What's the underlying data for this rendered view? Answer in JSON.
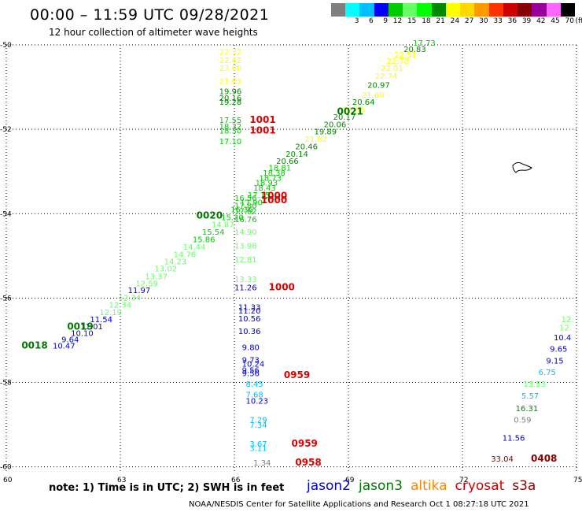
{
  "title": "00:00 – 11:59 UTC 09/28/2021",
  "subtitle": "12 hour collection of altimeter wave heights",
  "note": "note: 1) Time is in UTC; 2) SWH is in feet",
  "credit": "NOAA/NESDIS Center for Satellite Applications and Research    Oct  1 08:27:18 UTC 2021",
  "scale": {
    "unit": "(ft)",
    "labels": [
      "",
      "3",
      "6",
      "9",
      "12",
      "15",
      "18",
      "21",
      "24",
      "27",
      "30",
      "33",
      "36",
      "39",
      "42",
      "45",
      "70"
    ],
    "colors": [
      "#7f7f7f",
      "#00ffff",
      "#00bfff",
      "#0000ff",
      "#00cc00",
      "#66ff66",
      "#00ff00",
      "#008800",
      "#ffff00",
      "#ffd700",
      "#ff9900",
      "#ff3300",
      "#cc0000",
      "#880000",
      "#990099",
      "#ff66ff",
      "#000000"
    ]
  },
  "satellites": [
    {
      "name": "jason2",
      "color": "#0000cc"
    },
    {
      "name": "jason3",
      "color": "#007700"
    },
    {
      "name": "altika",
      "color": "#ff8800"
    },
    {
      "name": "cryosat",
      "color": "#cc0000"
    },
    {
      "name": "s3a",
      "color": "#880000"
    }
  ],
  "map": {
    "lon_range": [
      60,
      75
    ],
    "lat_range": [
      -60.1,
      -50
    ],
    "lon_ticks": [
      60,
      63,
      66,
      69,
      72,
      75
    ],
    "lat_ticks": [
      -50,
      -52,
      -54,
      -56,
      -58,
      -60
    ],
    "lon_labels": [
      "60",
      "63",
      "66",
      "69",
      "72",
      "75"
    ],
    "lat_labels": [
      "-50",
      "-52",
      "-54",
      "-56",
      "-58",
      "-60"
    ]
  },
  "observations": [
    {
      "lon": 61.22,
      "lat": -57.2,
      "v": "10.47",
      "c": "#0000cc"
    },
    {
      "lon": 61.45,
      "lat": -57.05,
      "v": "9.64",
      "c": "#0000cc"
    },
    {
      "lon": 61.7,
      "lat": -56.9,
      "v": "10.10",
      "c": "#0000cc"
    },
    {
      "lon": 61.95,
      "lat": -56.74,
      "v": "11.01",
      "c": "#0000cc"
    },
    {
      "lon": 62.2,
      "lat": -56.57,
      "v": "11.54",
      "c": "#0000cc"
    },
    {
      "lon": 62.45,
      "lat": -56.4,
      "v": "12.19",
      "c": "#66ff66"
    },
    {
      "lon": 62.7,
      "lat": -56.23,
      "v": "12.34",
      "c": "#66ff66"
    },
    {
      "lon": 62.95,
      "lat": -56.06,
      "v": "12.34",
      "c": "#66ff66"
    },
    {
      "lon": 63.2,
      "lat": -55.88,
      "v": "11.97",
      "c": "#0000cc"
    },
    {
      "lon": 63.4,
      "lat": -55.72,
      "v": "12.59",
      "c": "#66ff66"
    },
    {
      "lon": 63.65,
      "lat": -55.55,
      "v": "13.37",
      "c": "#66ff66"
    },
    {
      "lon": 63.9,
      "lat": -55.37,
      "v": "13.02",
      "c": "#66ff66"
    },
    {
      "lon": 64.15,
      "lat": -55.2,
      "v": "14.23",
      "c": "#66ff66"
    },
    {
      "lon": 64.4,
      "lat": -55.03,
      "v": "14.76",
      "c": "#66ff66"
    },
    {
      "lon": 64.65,
      "lat": -54.85,
      "v": "14.44",
      "c": "#66ff66"
    },
    {
      "lon": 64.9,
      "lat": -54.68,
      "v": "15.86",
      "c": "#00cc00"
    },
    {
      "lon": 65.15,
      "lat": -54.5,
      "v": "15.54",
      "c": "#00cc00"
    },
    {
      "lon": 65.4,
      "lat": -54.32,
      "v": "14.87",
      "c": "#66ff66"
    },
    {
      "lon": 65.65,
      "lat": -54.15,
      "v": "15.20",
      "c": "#00cc00"
    },
    {
      "lon": 65.9,
      "lat": -53.97,
      "v": "16.36",
      "c": "#00cc00"
    },
    {
      "lon": 66.15,
      "lat": -53.8,
      "v": "17.90",
      "c": "#00cc00"
    },
    {
      "lon": 66.35,
      "lat": -53.62,
      "v": "17.15",
      "c": "#00cc00"
    },
    {
      "lon": 66.5,
      "lat": -53.45,
      "v": "18.43",
      "c": "#00cc00"
    },
    {
      "lon": 66.55,
      "lat": -53.33,
      "v": "18.93",
      "c": "#00cc00"
    },
    {
      "lon": 66.65,
      "lat": -53.22,
      "v": "18.73",
      "c": "#00cc00"
    },
    {
      "lon": 66.75,
      "lat": -53.1,
      "v": "18.38",
      "c": "#00cc00"
    },
    {
      "lon": 66.9,
      "lat": -52.98,
      "v": "18.81",
      "c": "#00cc00"
    },
    {
      "lon": 67.1,
      "lat": -52.82,
      "v": "20.66",
      "c": "#008800"
    },
    {
      "lon": 67.35,
      "lat": -52.65,
      "v": "20.14",
      "c": "#008800"
    },
    {
      "lon": 67.6,
      "lat": -52.47,
      "v": "20.46",
      "c": "#008800"
    },
    {
      "lon": 67.85,
      "lat": -52.3,
      "v": "21.82",
      "c": "#ffff00"
    },
    {
      "lon": 68.1,
      "lat": -52.12,
      "v": "19.89",
      "c": "#008800"
    },
    {
      "lon": 68.35,
      "lat": -51.95,
      "v": "20.06",
      "c": "#008800"
    },
    {
      "lon": 68.6,
      "lat": -51.77,
      "v": "20.17",
      "c": "#008800"
    },
    {
      "lon": 68.85,
      "lat": -51.6,
      "v": "21.55",
      "c": "#ffff00"
    },
    {
      "lon": 69.1,
      "lat": -51.42,
      "v": "20.64",
      "c": "#008800"
    },
    {
      "lon": 69.35,
      "lat": -51.25,
      "v": "21.68",
      "c": "#ffff00"
    },
    {
      "lon": 69.5,
      "lat": -51.02,
      "v": "20.97",
      "c": "#008800"
    },
    {
      "lon": 69.7,
      "lat": -50.8,
      "v": "22.74",
      "c": "#ffff00"
    },
    {
      "lon": 69.85,
      "lat": -50.62,
      "v": "22.01",
      "c": "#ffff00"
    },
    {
      "lon": 70.0,
      "lat": -50.45,
      "v": "22.78",
      "c": "#ffff00"
    },
    {
      "lon": 70.2,
      "lat": -50.3,
      "v": "22.51",
      "c": "#ffff00"
    },
    {
      "lon": 70.45,
      "lat": -50.17,
      "v": "20.83",
      "c": "#008800"
    },
    {
      "lon": 70.7,
      "lat": -50.02,
      "v": "17.73",
      "c": "#00cc00"
    },
    {
      "lon": 65.6,
      "lat": -50.23,
      "v": "22.32",
      "c": "#ffff00"
    },
    {
      "lon": 65.6,
      "lat": -50.43,
      "v": "22.42",
      "c": "#ffff00"
    },
    {
      "lon": 65.6,
      "lat": -50.62,
      "v": "23.60",
      "c": "#ffff00"
    },
    {
      "lon": 65.6,
      "lat": -50.92,
      "v": "21.63",
      "c": "#ffff00"
    },
    {
      "lon": 65.6,
      "lat": -51.17,
      "v": "19.96",
      "c": "#008800"
    },
    {
      "lon": 65.6,
      "lat": -51.33,
      "v": "20.16",
      "c": "#008800"
    },
    {
      "lon": 65.6,
      "lat": -51.42,
      "v": "19.28",
      "c": "#008800"
    },
    {
      "lon": 65.6,
      "lat": -51.85,
      "v": "17.55",
      "c": "#00cc00"
    },
    {
      "lon": 65.6,
      "lat": -52.0,
      "v": "18.32",
      "c": "#00cc00"
    },
    {
      "lon": 65.6,
      "lat": -52.1,
      "v": "18.30",
      "c": "#00cc00"
    },
    {
      "lon": 65.6,
      "lat": -52.35,
      "v": "17.10",
      "c": "#00cc00"
    },
    {
      "lon": 66.0,
      "lat": -53.7,
      "v": "16.56",
      "c": "#00cc00"
    },
    {
      "lon": 66.0,
      "lat": -53.87,
      "v": "17.80",
      "c": "#00cc00"
    },
    {
      "lon": 66.0,
      "lat": -54.0,
      "v": "17.62",
      "c": "#00cc00"
    },
    {
      "lon": 66.0,
      "lat": -54.2,
      "v": "16.76",
      "c": "#00cc00"
    },
    {
      "lon": 66.0,
      "lat": -54.5,
      "v": "14.90",
      "c": "#66ff66"
    },
    {
      "lon": 66.0,
      "lat": -54.83,
      "v": "13.98",
      "c": "#66ff66"
    },
    {
      "lon": 66.0,
      "lat": -55.15,
      "v": "12.81",
      "c": "#66ff66"
    },
    {
      "lon": 66.0,
      "lat": -55.62,
      "v": "13.33",
      "c": "#66ff66"
    },
    {
      "lon": 66.0,
      "lat": -55.82,
      "v": "11.26",
      "c": "#0000cc"
    },
    {
      "lon": 66.1,
      "lat": -56.28,
      "v": "11.33",
      "c": "#0000cc"
    },
    {
      "lon": 66.1,
      "lat": -56.37,
      "v": "11.20",
      "c": "#0000cc"
    },
    {
      "lon": 66.1,
      "lat": -56.55,
      "v": "10.56",
      "c": "#0000cc"
    },
    {
      "lon": 66.1,
      "lat": -56.85,
      "v": "10.36",
      "c": "#0000cc"
    },
    {
      "lon": 66.2,
      "lat": -57.23,
      "v": "9.80",
      "c": "#0000cc"
    },
    {
      "lon": 66.2,
      "lat": -57.53,
      "v": "9.73",
      "c": "#0000cc"
    },
    {
      "lon": 66.2,
      "lat": -57.63,
      "v": "10.24",
      "c": "#0000cc"
    },
    {
      "lon": 66.2,
      "lat": -57.78,
      "v": "9.56",
      "c": "#0000cc"
    },
    {
      "lon": 66.2,
      "lat": -57.85,
      "v": "9.56",
      "c": "#0000cc"
    },
    {
      "lon": 66.3,
      "lat": -58.1,
      "v": "8.45",
      "c": "#00bfff"
    },
    {
      "lon": 66.3,
      "lat": -58.35,
      "v": "7.68",
      "c": "#00bfff"
    },
    {
      "lon": 66.3,
      "lat": -58.5,
      "v": "10.23",
      "c": "#0000cc"
    },
    {
      "lon": 66.4,
      "lat": -58.95,
      "v": "7.29",
      "c": "#00bfff"
    },
    {
      "lon": 66.4,
      "lat": -59.07,
      "v": "7.34",
      "c": "#00bfff"
    },
    {
      "lon": 66.4,
      "lat": -59.52,
      "v": "3.67",
      "c": "#00bfff"
    },
    {
      "lon": 66.4,
      "lat": -59.62,
      "v": "3.11",
      "c": "#00bfff"
    },
    {
      "lon": 66.5,
      "lat": -59.97,
      "v": "1.34",
      "c": "#7f7f7f"
    },
    {
      "lon": 74.6,
      "lat": -56.57,
      "v": "12.",
      "c": "#66ff66"
    },
    {
      "lon": 74.55,
      "lat": -56.77,
      "v": "12.",
      "c": "#66ff66"
    },
    {
      "lon": 74.4,
      "lat": -57.0,
      "v": "10.4",
      "c": "#0000cc"
    },
    {
      "lon": 74.3,
      "lat": -57.27,
      "v": "9.65",
      "c": "#0000cc"
    },
    {
      "lon": 74.2,
      "lat": -57.55,
      "v": "9.15",
      "c": "#0000cc"
    },
    {
      "lon": 74.0,
      "lat": -57.82,
      "v": "6.75",
      "c": "#00bfff"
    },
    {
      "lon": 73.6,
      "lat": -58.1,
      "v": "13.53",
      "c": "#66ff66"
    },
    {
      "lon": 73.55,
      "lat": -58.38,
      "v": "5.57",
      "c": "#00bfff"
    },
    {
      "lon": 73.4,
      "lat": -58.68,
      "v": "16.31",
      "c": "#008800"
    },
    {
      "lon": 73.35,
      "lat": -58.95,
      "v": "0.59",
      "c": "#7f7f7f"
    },
    {
      "lon": 73.05,
      "lat": -59.38,
      "v": "11.56",
      "c": "#0000cc"
    },
    {
      "lon": 72.75,
      "lat": -59.88,
      "v": "33.04",
      "c": "#880000"
    }
  ],
  "time_labels": [
    {
      "lon": 60.4,
      "lat": -57.2,
      "t": "0018",
      "c": "#007700"
    },
    {
      "lon": 61.6,
      "lat": -56.75,
      "t": "0019",
      "c": "#007700"
    },
    {
      "lon": 65.0,
      "lat": -54.12,
      "t": "0020",
      "c": "#007700"
    },
    {
      "lon": 68.7,
      "lat": -51.65,
      "t": "0021",
      "c": "#007700"
    },
    {
      "lon": 66.4,
      "lat": -51.85,
      "t": "1001",
      "c": "#dd0000"
    },
    {
      "lon": 66.4,
      "lat": -52.1,
      "t": "1001",
      "c": "#dd0000"
    },
    {
      "lon": 66.7,
      "lat": -53.65,
      "t": "1000",
      "c": "#dd0000"
    },
    {
      "lon": 66.7,
      "lat": -53.75,
      "t": "1000",
      "c": "#dd0000"
    },
    {
      "lon": 66.9,
      "lat": -55.82,
      "t": "1000",
      "c": "#dd0000"
    },
    {
      "lon": 67.3,
      "lat": -57.9,
      "t": "0959",
      "c": "#dd0000"
    },
    {
      "lon": 67.5,
      "lat": -59.52,
      "t": "0959",
      "c": "#dd0000"
    },
    {
      "lon": 67.6,
      "lat": -59.97,
      "t": "0958",
      "c": "#dd0000"
    },
    {
      "lon": 73.8,
      "lat": -59.88,
      "t": "0408",
      "c": "#880000"
    }
  ]
}
